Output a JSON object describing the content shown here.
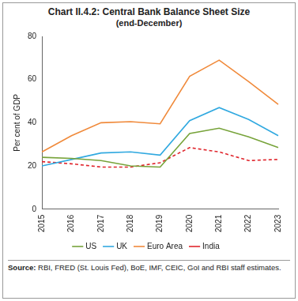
{
  "chart_data": {
    "type": "line",
    "title": "Chart II.4.2: Central Bank Balance Sheet Size",
    "subtitle": "(end-December)",
    "y_label": "Per cent of GDP",
    "source": "Source: RBI, FRED (St. Louis Fed), BoE, IMF, CEIC, GoI and RBI staff estimates.",
    "categories": [
      "2015",
      "2016",
      "2017",
      "2018",
      "2019",
      "2020",
      "2021",
      "2022",
      "2023"
    ],
    "series": [
      {
        "name": "US",
        "color": "#77a33a",
        "line_style": "solid",
        "values": [
          24,
          23.5,
          22.5,
          20,
          19.5,
          35,
          37.5,
          33.5,
          28.5
        ]
      },
      {
        "name": "UK",
        "color": "#31a9e0",
        "line_style": "solid",
        "values": [
          20,
          23,
          26,
          26.5,
          25,
          41,
          47,
          41.5,
          34
        ]
      },
      {
        "name": "Euro Area",
        "color": "#f08a3b",
        "line_style": "solid",
        "values": [
          26.5,
          34,
          40,
          40.5,
          39.5,
          61.5,
          69,
          59,
          48.5
        ]
      },
      {
        "name": "India",
        "color": "#e0262d",
        "line_style": "dashed",
        "values": [
          22,
          21,
          19.5,
          19.5,
          21.5,
          28.5,
          26.5,
          22.5,
          23
        ]
      }
    ],
    "ylim": [
      0,
      80
    ],
    "yticks": [
      0,
      20,
      40,
      60,
      80
    ],
    "grid": false,
    "legend": "bottom"
  }
}
